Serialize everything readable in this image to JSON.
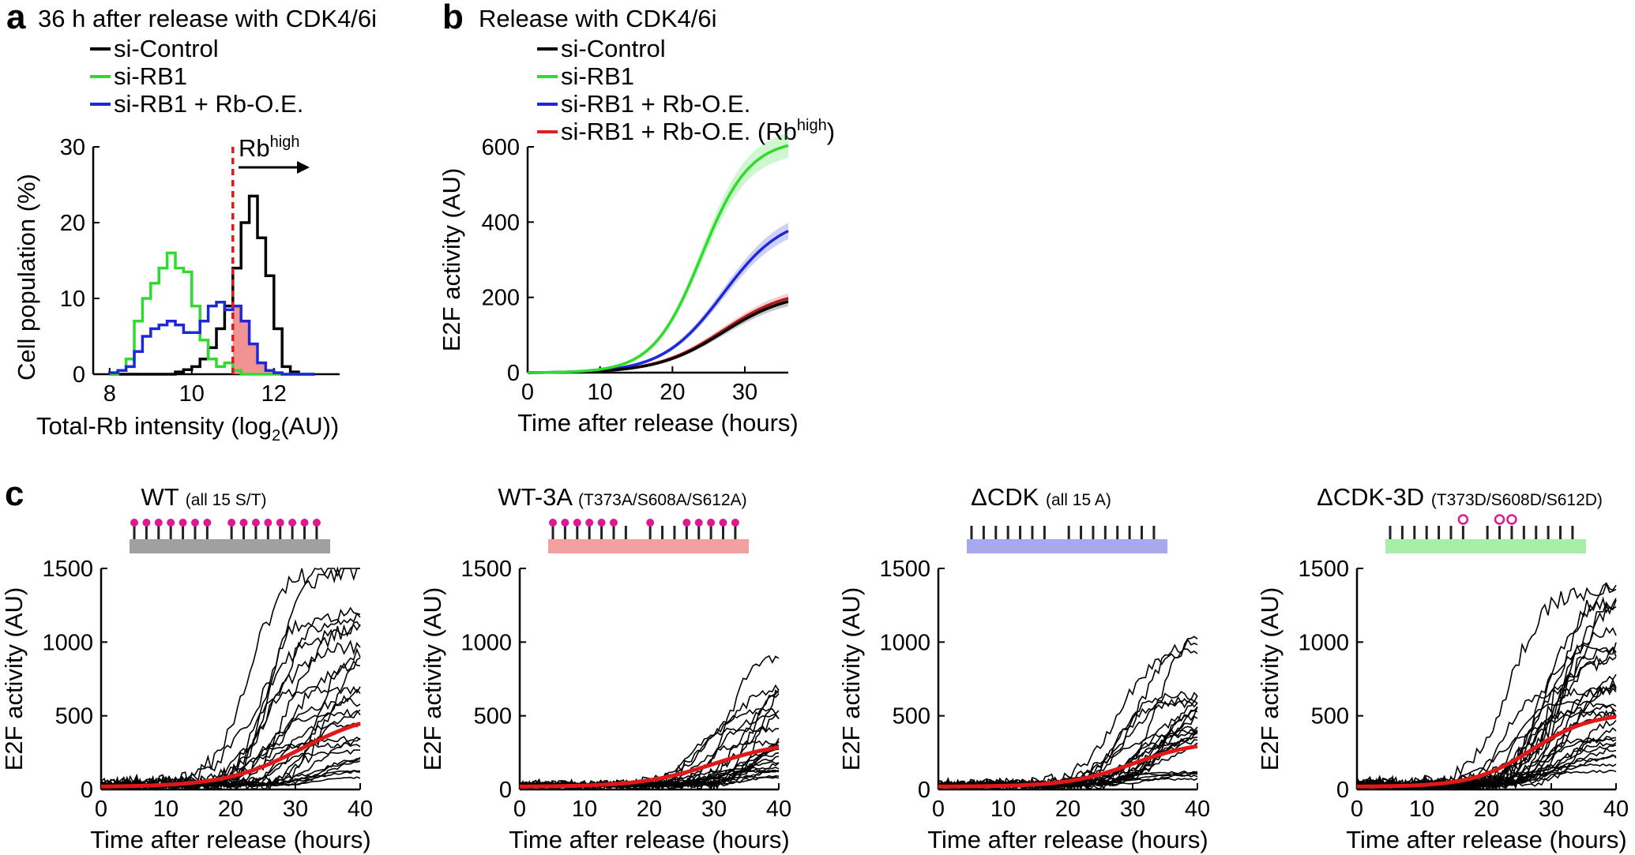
{
  "panel_a": {
    "label": "a",
    "title": "36 h after release with CDK4/6i",
    "legend": [
      {
        "text": "si-Control",
        "color": "#000000"
      },
      {
        "text": "si-RB1",
        "color": "#2edb2e"
      },
      {
        "text": "si-RB1 + Rb-O.E.",
        "color": "#1f28d8"
      }
    ],
    "rb_high_label": "Rb",
    "rb_high_sup": "high",
    "threshold_x": 11,
    "xlabel_pre": "Total-Rb intensity (log",
    "xlabel_sub": "2",
    "xlabel_post": "(AU))",
    "ylabel": "Cell population (%)"
  },
  "panel_b": {
    "label": "b",
    "title": "Release with CDK4/6i",
    "legend": [
      {
        "text": "si-Control",
        "color": "#000000"
      },
      {
        "text": "si-RB1",
        "color": "#2edb2e"
      },
      {
        "text": "si-RB1 + Rb-O.E.",
        "color": "#1f28d8"
      },
      {
        "text": "si-RB1 + Rb-O.E. (Rb",
        "sup": "high",
        "tail": ")",
        "color": "#e02020"
      }
    ]
  },
  "panel_c": {
    "label": "c",
    "panels": [
      {
        "name": "WT",
        "detail": "(all 15 S/T)",
        "bar_color": "#a0a0a0"
      },
      {
        "name": "WT-3A",
        "detail": "(T373A/S608A/S612A)",
        "bar_color": "#f5a0a0"
      },
      {
        "name": "ΔCDK",
        "detail": "(all 15 A)",
        "bar_color": "#a8a8ee"
      },
      {
        "name": "ΔCDK-3D",
        "detail": "(T373D/S608D/S612D)",
        "bar_color": "#a8eea8"
      }
    ]
  },
  "chart_data": [
    {
      "type": "histogram",
      "title": "36 h after release with CDK4/6i",
      "xlabel": "Total-Rb intensity (log2(AU))",
      "ylabel": "Cell population (%)",
      "xlim": [
        7.6,
        13.6
      ],
      "ylim": [
        0,
        30
      ],
      "xticks": [
        8,
        10,
        12
      ],
      "yticks": [
        0,
        10,
        20,
        30
      ],
      "bin_edges": [
        8.0,
        8.2,
        8.4,
        8.6,
        8.8,
        9.0,
        9.2,
        9.4,
        9.6,
        9.8,
        10.0,
        10.2,
        10.4,
        10.6,
        10.8,
        11.0,
        11.2,
        11.4,
        11.6,
        11.8,
        12.0,
        12.2,
        12.4,
        12.6,
        12.8,
        13.0
      ],
      "series": [
        {
          "name": "si-Control",
          "color": "#000000",
          "values": [
            0,
            0,
            0,
            0,
            0,
            0,
            0,
            0,
            0.3,
            0.6,
            1.0,
            2.0,
            3.5,
            6.0,
            9.0,
            14.0,
            20.0,
            23.5,
            18.0,
            13.0,
            6.0,
            1.0,
            0.3,
            0,
            0
          ]
        },
        {
          "name": "si-RB1",
          "color": "#2edb2e",
          "values": [
            0,
            0.5,
            2.0,
            7.0,
            10.0,
            12.0,
            14.0,
            16.0,
            14.0,
            13.5,
            9.0,
            4.5,
            2.0,
            1.0,
            1.5,
            0.5,
            0,
            0,
            0,
            0,
            0,
            0,
            0,
            0,
            0
          ]
        },
        {
          "name": "si-RB1 + Rb-O.E.",
          "color": "#1f28d8",
          "values": [
            0.2,
            0.5,
            1.0,
            3.0,
            5.0,
            6.0,
            6.5,
            7.0,
            6.5,
            5.5,
            5.5,
            7.0,
            9.0,
            9.5,
            8.5,
            9.0,
            7.0,
            4.0,
            1.5,
            0.5,
            0.2,
            0,
            0,
            0,
            0
          ]
        }
      ],
      "shaded_region": {
        "name": "Rb-high",
        "from_x": 11,
        "color": "#f08080"
      },
      "threshold": 11
    },
    {
      "type": "line",
      "title": "Release with CDK4/6i",
      "xlabel": "Time after release (hours)",
      "ylabel": "E2F activity (AU)",
      "xlim": [
        0,
        36
      ],
      "ylim": [
        0,
        600
      ],
      "xticks": [
        0,
        10,
        20,
        30
      ],
      "yticks": [
        0,
        200,
        400,
        600
      ],
      "series": [
        {
          "name": "si-Control",
          "color": "#000000",
          "max": 215,
          "t50": 27,
          "k": 0.22
        },
        {
          "name": "si-RB1",
          "color": "#2edb2e",
          "max": 620,
          "t50": 24,
          "k": 0.3
        },
        {
          "name": "si-RB1 + Rb-O.E.",
          "color": "#1f28d8",
          "max": 420,
          "t50": 27,
          "k": 0.24
        },
        {
          "name": "si-RB1 + Rb-O.E. (Rbhigh)",
          "color": "#e02020",
          "max": 225,
          "t50": 27,
          "k": 0.22
        }
      ]
    },
    {
      "type": "line",
      "title": "WT (all 15 S/T)",
      "xlabel": "Time after release (hours)",
      "ylabel": "E2F activity (AU)",
      "xlim": [
        0,
        40
      ],
      "ylim": [
        0,
        1500
      ],
      "xticks": [
        0,
        10,
        20,
        30,
        40
      ],
      "yticks": [
        0,
        500,
        1000,
        1500
      ],
      "mean": {
        "max": 520,
        "t50": 31,
        "k": 0.17,
        "color": "#e01818"
      },
      "traces": {
        "count": 26,
        "onset_range": [
          18,
          32
        ],
        "max_range": [
          40,
          1500
        ],
        "seed": 11
      },
      "sites": {
        "style": "filled",
        "open_idx": []
      }
    },
    {
      "type": "line",
      "title": "WT-3A (T373A/S608A/S612A)",
      "xlabel": "Time after release (hours)",
      "ylabel": "E2F activity (AU)",
      "xlim": [
        0,
        40
      ],
      "ylim": [
        0,
        1500
      ],
      "xticks": [
        0,
        10,
        20,
        30,
        40
      ],
      "yticks": [
        0,
        500,
        1000,
        1500
      ],
      "mean": {
        "max": 310,
        "t50": 30,
        "k": 0.18,
        "color": "#e01818"
      },
      "traces": {
        "count": 24,
        "onset_range": [
          20,
          34
        ],
        "max_range": [
          40,
          950
        ],
        "seed": 23
      },
      "sites": {
        "style": "filled-partial",
        "open_idx": []
      }
    },
    {
      "type": "line",
      "title": "ΔCDK (all 15 A)",
      "xlabel": "Time after release (hours)",
      "ylabel": "E2F activity (AU)",
      "xlim": [
        0,
        40
      ],
      "ylim": [
        0,
        1500
      ],
      "xticks": [
        0,
        10,
        20,
        30,
        40
      ],
      "yticks": [
        0,
        500,
        1000,
        1500
      ],
      "mean": {
        "max": 310,
        "t50": 30,
        "k": 0.2,
        "color": "#e01818"
      },
      "traces": {
        "count": 24,
        "onset_range": [
          22,
          32
        ],
        "max_range": [
          30,
          1080
        ],
        "seed": 37
      },
      "sites": {
        "style": "none",
        "open_idx": []
      }
    },
    {
      "type": "line",
      "title": "ΔCDK-3D (T373D/S608D/S612D)",
      "xlabel": "Time after release (hours)",
      "ylabel": "E2F activity (AU)",
      "xlim": [
        0,
        40
      ],
      "ylim": [
        0,
        1500
      ],
      "xticks": [
        0,
        10,
        20,
        30,
        40
      ],
      "yticks": [
        0,
        500,
        1000,
        1500
      ],
      "mean": {
        "max": 500,
        "t50": 27,
        "k": 0.22,
        "color": "#e01818"
      },
      "traces": {
        "count": 30,
        "onset_range": [
          18,
          30
        ],
        "max_range": [
          80,
          1500
        ],
        "seed": 53
      },
      "sites": {
        "style": "open",
        "open_idx": [
          6,
          8,
          9
        ]
      }
    }
  ],
  "axis_text": {
    "time_label": "Time after release (hours)",
    "e2f_label": "E2F activity (AU)"
  }
}
